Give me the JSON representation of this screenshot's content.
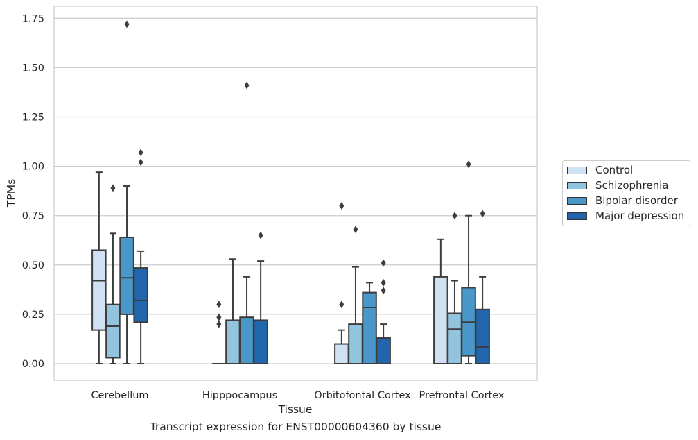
{
  "caption": "Transcript expression for ENST00000604360 by tissue",
  "chart_data": {
    "type": "box",
    "title": "",
    "xlabel": "Tissue",
    "ylabel": "TPMs",
    "ylim": [
      -0.08,
      1.81
    ],
    "yticks": [
      0.0,
      0.25,
      0.5,
      0.75,
      1.0,
      1.25,
      1.5,
      1.75
    ],
    "ytick_labels": [
      "0.00",
      "0.25",
      "0.50",
      "0.75",
      "1.00",
      "1.25",
      "1.50",
      "1.75"
    ],
    "grid": "horizontal",
    "legend_position": "right",
    "categories": [
      "Cerebellum",
      "Hipppocampus",
      "Orbitofontal Cortex",
      "Prefrontal Cortex"
    ],
    "series": [
      {
        "name": "Control",
        "color": "#cfe1f2",
        "boxes": [
          {
            "whislo": 0.0,
            "q1": 0.17,
            "med": 0.42,
            "q3": 0.575,
            "whishi": 0.97,
            "fliers": []
          },
          {
            "whislo": 0.0,
            "q1": 0.0,
            "med": 0.0,
            "q3": 0.0,
            "whishi": 0.0,
            "fliers": [
              0.3,
              0.235,
              0.2
            ]
          },
          {
            "whislo": 0.0,
            "q1": 0.0,
            "med": 0.0,
            "q3": 0.1,
            "whishi": 0.17,
            "fliers": [
              0.8,
              0.3
            ]
          },
          {
            "whislo": 0.0,
            "q1": 0.0,
            "med": 0.0,
            "q3": 0.44,
            "whishi": 0.63,
            "fliers": []
          }
        ]
      },
      {
        "name": "Schizophrenia",
        "color": "#93c4de",
        "boxes": [
          {
            "whislo": 0.0,
            "q1": 0.03,
            "med": 0.19,
            "q3": 0.3,
            "whishi": 0.66,
            "fliers": [
              0.89
            ]
          },
          {
            "whislo": 0.0,
            "q1": 0.0,
            "med": 0.0,
            "q3": 0.22,
            "whishi": 0.53,
            "fliers": []
          },
          {
            "whislo": 0.0,
            "q1": 0.0,
            "med": 0.0,
            "q3": 0.2,
            "whishi": 0.49,
            "fliers": [
              0.68
            ]
          },
          {
            "whislo": 0.0,
            "q1": 0.0,
            "med": 0.175,
            "q3": 0.255,
            "whishi": 0.42,
            "fliers": [
              0.75
            ]
          }
        ]
      },
      {
        "name": "Bipolar disorder",
        "color": "#4a98c9",
        "boxes": [
          {
            "whislo": 0.0,
            "q1": 0.25,
            "med": 0.435,
            "q3": 0.64,
            "whishi": 0.9,
            "fliers": [
              1.72
            ]
          },
          {
            "whislo": 0.0,
            "q1": 0.0,
            "med": 0.0,
            "q3": 0.235,
            "whishi": 0.44,
            "fliers": [
              1.41
            ]
          },
          {
            "whislo": 0.0,
            "q1": 0.0,
            "med": 0.285,
            "q3": 0.36,
            "whishi": 0.41,
            "fliers": []
          },
          {
            "whislo": 0.0,
            "q1": 0.04,
            "med": 0.21,
            "q3": 0.385,
            "whishi": 0.75,
            "fliers": [
              1.01
            ]
          }
        ]
      },
      {
        "name": "Major depression",
        "color": "#2166ac",
        "boxes": [
          {
            "whislo": 0.0,
            "q1": 0.21,
            "med": 0.32,
            "q3": 0.485,
            "whishi": 0.57,
            "fliers": [
              1.07,
              1.02
            ]
          },
          {
            "whislo": 0.0,
            "q1": 0.0,
            "med": 0.0,
            "q3": 0.22,
            "whishi": 0.52,
            "fliers": [
              0.65
            ]
          },
          {
            "whislo": 0.0,
            "q1": 0.0,
            "med": 0.0,
            "q3": 0.13,
            "whishi": 0.2,
            "fliers": [
              0.51,
              0.41,
              0.37
            ]
          },
          {
            "whislo": 0.0,
            "q1": 0.0,
            "med": 0.085,
            "q3": 0.275,
            "whishi": 0.44,
            "fliers": [
              0.76
            ]
          }
        ]
      }
    ]
  }
}
